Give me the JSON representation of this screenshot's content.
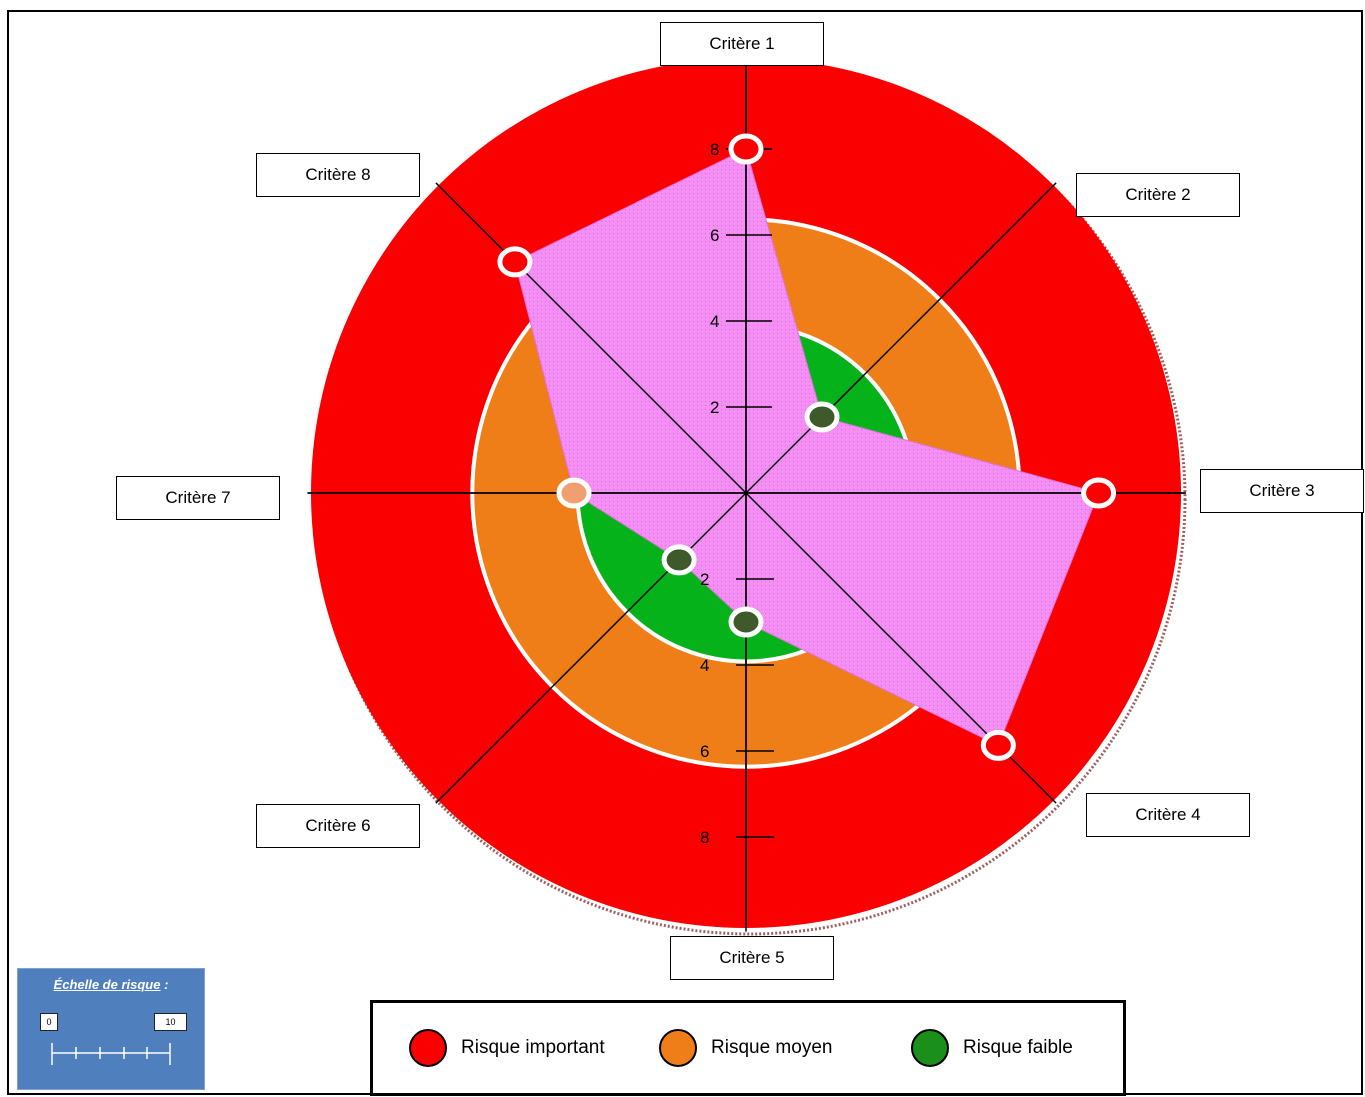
{
  "chart_data": {
    "type": "radar",
    "axes": [
      "Critère 1",
      "Critère 2",
      "Critère 3",
      "Critère 4",
      "Critère 5",
      "Critère 6",
      "Critère 7",
      "Critère 8"
    ],
    "values": [
      8,
      2.5,
      8.2,
      8.3,
      3,
      2.2,
      4,
      7.6
    ],
    "tick_values": [
      2,
      4,
      6,
      8
    ],
    "tick_labels_up": [
      "2",
      "4",
      "6",
      "8"
    ],
    "tick_labels_down": [
      "2",
      "4",
      "6",
      "8"
    ],
    "zones": [
      {
        "name": "Risque faible",
        "from": 0,
        "to": 3.5,
        "color": "#05b21a"
      },
      {
        "name": "Risque moyen",
        "from": 3.5,
        "to": 6.5,
        "color": "#f07e18"
      },
      {
        "name": "Risque important",
        "from": 6.5,
        "to": 9.0,
        "color": "#fb0000"
      }
    ],
    "series_color": "#f58ef5",
    "grid": true
  },
  "legend": {
    "items": [
      {
        "label": "Risque important",
        "color": "#fb0000"
      },
      {
        "label": "Risque moyen",
        "color": "#f07e18"
      },
      {
        "label": "Risque faible",
        "color": "#1a8f1a"
      }
    ]
  },
  "scale": {
    "title": "Échelle de risque",
    "title_suffix": " :",
    "min": "0",
    "max": "10"
  }
}
